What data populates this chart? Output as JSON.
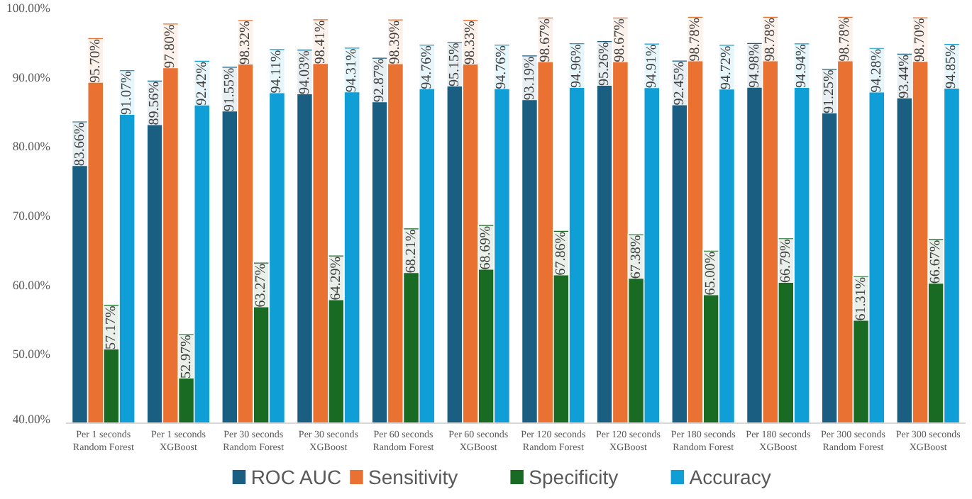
{
  "chart_data": {
    "type": "bar",
    "categories": [
      "Per 1 seconds Random Forest",
      "Per 1 seconds XGBoost",
      "Per 30 seconds Random Forest",
      "Per 30 seconds XGBoost",
      "Per 60 seconds Random Forest",
      "Per 60 seconds XGBoost",
      "Per 120 seconds Random Forest",
      "Per 120 seconds XGBoost",
      "Per 180 seconds Random Forest",
      "Per 180 seconds XGBoost",
      "Per 300 seconds Random Forest",
      "Per 300 seconds XGBoost"
    ],
    "series": [
      {
        "name": "ROC AUC",
        "color": "#1a5f82",
        "values": [
          83.66,
          89.56,
          91.55,
          94.03,
          92.87,
          95.15,
          93.19,
          95.26,
          92.45,
          94.98,
          91.25,
          93.44
        ],
        "value_labels": [
          "83.66%",
          "89.56%",
          "91.55%",
          "94.03%",
          "92.87%",
          "95.15%",
          "93.19%",
          "95.26%",
          "92.45%",
          "94.98%",
          "91.25%",
          "93.44%"
        ]
      },
      {
        "name": "Sensitivity",
        "color": "#e97132",
        "values": [
          95.7,
          97.8,
          98.32,
          98.41,
          98.39,
          98.33,
          98.67,
          98.67,
          98.78,
          98.78,
          98.78,
          98.7
        ],
        "value_labels": [
          "95.70%",
          "97.80%",
          "98.32%",
          "98.41%",
          "98.39%",
          "98.33%",
          "98.67%",
          "98.67%",
          "98.78%",
          "98.78%",
          "98.78%",
          "98.70%"
        ]
      },
      {
        "name": "Specificity",
        "color": "#196b24",
        "values": [
          57.17,
          52.97,
          63.27,
          64.29,
          68.21,
          68.69,
          67.86,
          67.38,
          65.0,
          66.79,
          61.31,
          66.67
        ],
        "value_labels": [
          "57.17%",
          "52.97%",
          "63.27%",
          "64.29%",
          "68.21%",
          "68.69%",
          "67.86%",
          "67.38%",
          "65.00%",
          "66.79%",
          "61.31%",
          "66.67%"
        ]
      },
      {
        "name": "Accuracy",
        "color": "#0f9ed5",
        "values": [
          91.07,
          92.42,
          94.11,
          94.31,
          94.76,
          94.76,
          94.96,
          94.91,
          94.72,
          94.94,
          94.28,
          94.85
        ],
        "value_labels": [
          "91.07%",
          "92.42%",
          "94.11%",
          "94.31%",
          "94.76%",
          "94.76%",
          "94.96%",
          "94.91%",
          "94.72%",
          "94.94%",
          "94.28%",
          "94.85%"
        ]
      }
    ],
    "ylim": [
      40,
      100
    ],
    "yticks": [
      {
        "value": 40,
        "label": "40.00%"
      },
      {
        "value": 50,
        "label": "50.00%"
      },
      {
        "value": 60,
        "label": "60.00%"
      },
      {
        "value": 70,
        "label": "70.00%"
      },
      {
        "value": 80,
        "label": "80.00%"
      },
      {
        "value": 90,
        "label": "90.00%"
      },
      {
        "value": 100,
        "label": "100.00%"
      }
    ],
    "grid": false,
    "legend": "bottom"
  }
}
